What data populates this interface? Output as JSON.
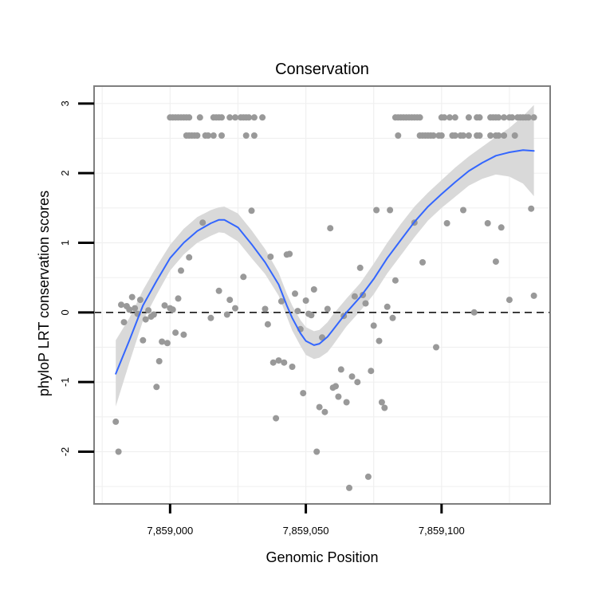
{
  "chart_data": {
    "type": "scatter",
    "title": "Conservation",
    "xlabel": "Genomic Position",
    "ylabel": "phyloP LRT conservation scores",
    "xlim": [
      7858972,
      7859140
    ],
    "ylim": [
      -2.75,
      3.25
    ],
    "x_ticks": [
      7859000,
      7859050,
      7859100
    ],
    "x_tick_labels": [
      "7,859,000",
      "7,859,050",
      "7,859,100"
    ],
    "y_ticks": [
      -2,
      -1,
      0,
      1,
      2,
      3
    ],
    "y_tick_labels": [
      "-2",
      "-1",
      "0",
      "1",
      "2",
      "3"
    ],
    "hline": {
      "y": 0,
      "style": "dashed",
      "color": "#000000"
    },
    "grid": true,
    "colors": {
      "points": "#999999",
      "smooth_line": "#3366ff",
      "confidence_band": "#d9d9d9",
      "panel_border": "#7f7f7f",
      "grid": "#f0f0f0"
    },
    "series": [
      {
        "name": "scores",
        "kind": "points",
        "points": [
          [
            7858980,
            -1.57
          ],
          [
            7858981,
            -2.0
          ],
          [
            7858982,
            0.11
          ],
          [
            7858983,
            -0.14
          ],
          [
            7858984,
            0.09
          ],
          [
            7858985,
            0.04
          ],
          [
            7858986,
            0.22
          ],
          [
            7858987,
            0.06
          ],
          [
            7858988,
            -0.02
          ],
          [
            7858989,
            0.18
          ],
          [
            7858990,
            -0.4
          ],
          [
            7858991,
            -0.1
          ],
          [
            7858992,
            0.03
          ],
          [
            7858993,
            -0.06
          ],
          [
            7858994,
            -0.03
          ],
          [
            7858995,
            -1.07
          ],
          [
            7858996,
            -0.7
          ],
          [
            7858997,
            -0.42
          ],
          [
            7858998,
            0.1
          ],
          [
            7858999,
            -0.44
          ],
          [
            7859000,
            0.06
          ],
          [
            7859001,
            0.04
          ],
          [
            7859002,
            -0.29
          ],
          [
            7859003,
            0.2
          ],
          [
            7859004,
            0.6
          ],
          [
            7859005,
            -0.32
          ],
          [
            7859007,
            0.79
          ],
          [
            7859012,
            1.29
          ],
          [
            7859015,
            -0.08
          ],
          [
            7859018,
            0.31
          ],
          [
            7859021,
            -0.03
          ],
          [
            7859022,
            0.18
          ],
          [
            7859024,
            0.06
          ],
          [
            7859027,
            0.51
          ],
          [
            7859030,
            1.46
          ],
          [
            7859035,
            0.05
          ],
          [
            7859036,
            -0.17
          ],
          [
            7859037,
            0.8
          ],
          [
            7859038,
            -0.72
          ],
          [
            7859039,
            -1.52
          ],
          [
            7859040,
            -0.69
          ],
          [
            7859041,
            0.16
          ],
          [
            7859042,
            -0.72
          ],
          [
            7859043,
            0.83
          ],
          [
            7859044,
            0.84
          ],
          [
            7859045,
            -0.78
          ],
          [
            7859046,
            0.27
          ],
          [
            7859047,
            0.02
          ],
          [
            7859048,
            -0.24
          ],
          [
            7859049,
            -1.16
          ],
          [
            7859050,
            0.17
          ],
          [
            7859051,
            -0.02
          ],
          [
            7859052,
            -0.04
          ],
          [
            7859053,
            0.33
          ],
          [
            7859054,
            -2.0
          ],
          [
            7859055,
            -1.36
          ],
          [
            7859056,
            -0.36
          ],
          [
            7859057,
            -1.43
          ],
          [
            7859058,
            0.05
          ],
          [
            7859059,
            1.21
          ],
          [
            7859060,
            -1.08
          ],
          [
            7859061,
            -1.06
          ],
          [
            7859062,
            -1.21
          ],
          [
            7859063,
            -0.82
          ],
          [
            7859064,
            -0.05
          ],
          [
            7859065,
            -1.29
          ],
          [
            7859066,
            -2.52
          ],
          [
            7859067,
            -0.92
          ],
          [
            7859068,
            0.23
          ],
          [
            7859069,
            -1.0
          ],
          [
            7859070,
            0.64
          ],
          [
            7859071,
            0.25
          ],
          [
            7859072,
            0.13
          ],
          [
            7859073,
            -2.36
          ],
          [
            7859074,
            -0.84
          ],
          [
            7859075,
            -0.19
          ],
          [
            7859076,
            1.47
          ],
          [
            7859077,
            -0.41
          ],
          [
            7859078,
            -1.29
          ],
          [
            7859079,
            -1.37
          ],
          [
            7859080,
            0.08
          ],
          [
            7859081,
            1.47
          ],
          [
            7859082,
            -0.08
          ],
          [
            7859083,
            0.46
          ],
          [
            7859090,
            1.29
          ],
          [
            7859093,
            0.72
          ],
          [
            7859098,
            -0.5
          ],
          [
            7859102,
            1.28
          ],
          [
            7859108,
            1.47
          ],
          [
            7859112,
            0.0
          ],
          [
            7859117,
            1.28
          ],
          [
            7859120,
            0.73
          ],
          [
            7859122,
            1.22
          ],
          [
            7859125,
            0.18
          ],
          [
            7859133,
            1.49
          ],
          [
            7859134,
            0.24
          ]
        ]
      },
      {
        "name": "top_band_a",
        "kind": "points",
        "y": 2.8,
        "x": [
          7859000,
          7859001,
          7859002,
          7859003,
          7859004,
          7859005,
          7859006,
          7859007,
          7859011,
          7859016,
          7859017,
          7859018,
          7859019,
          7859022,
          7859024,
          7859026,
          7859027,
          7859028,
          7859029,
          7859031,
          7859034,
          7859083,
          7859084,
          7859085,
          7859086,
          7859087,
          7859088,
          7859089,
          7859090,
          7859091,
          7859092,
          7859100,
          7859101,
          7859103,
          7859105,
          7859110,
          7859113,
          7859114,
          7859118,
          7859119,
          7859120,
          7859121,
          7859123,
          7859125,
          7859126,
          7859128,
          7859129,
          7859130,
          7859131,
          7859132,
          7859134
        ]
      },
      {
        "name": "top_band_b",
        "kind": "points",
        "y": 2.54,
        "x": [
          7859006,
          7859007,
          7859008,
          7859009,
          7859010,
          7859013,
          7859014,
          7859016,
          7859019,
          7859028,
          7859031,
          7859084,
          7859092,
          7859093,
          7859094,
          7859095,
          7859096,
          7859097,
          7859099,
          7859100,
          7859104,
          7859105,
          7859107,
          7859108,
          7859110,
          7859113,
          7859114,
          7859118,
          7859120,
          7859121,
          7859123,
          7859127
        ]
      },
      {
        "name": "loess",
        "kind": "line",
        "x": [
          7858980,
          7858985,
          7858990,
          7858995,
          7859000,
          7859005,
          7859010,
          7859015,
          7859018,
          7859020,
          7859025,
          7859030,
          7859035,
          7859040,
          7859043,
          7859045,
          7859048,
          7859050,
          7859053,
          7859055,
          7859058,
          7859060,
          7859065,
          7859070,
          7859075,
          7859080,
          7859085,
          7859090,
          7859095,
          7859100,
          7859105,
          7859110,
          7859115,
          7859120,
          7859125,
          7859130,
          7859134
        ],
        "y": [
          -0.88,
          -0.4,
          0.1,
          0.45,
          0.78,
          1.0,
          1.17,
          1.28,
          1.33,
          1.33,
          1.22,
          0.98,
          0.72,
          0.4,
          0.1,
          -0.08,
          -0.3,
          -0.41,
          -0.47,
          -0.45,
          -0.35,
          -0.25,
          0.0,
          0.22,
          0.48,
          0.78,
          1.04,
          1.3,
          1.52,
          1.7,
          1.87,
          2.03,
          2.15,
          2.25,
          2.3,
          2.33,
          2.32
        ]
      },
      {
        "name": "confidence_band",
        "kind": "band",
        "x": [
          7858980,
          7858985,
          7858990,
          7858995,
          7859000,
          7859005,
          7859010,
          7859015,
          7859018,
          7859020,
          7859025,
          7859030,
          7859035,
          7859040,
          7859043,
          7859045,
          7859048,
          7859050,
          7859053,
          7859055,
          7859058,
          7859060,
          7859065,
          7859070,
          7859075,
          7859080,
          7859085,
          7859090,
          7859095,
          7859100,
          7859105,
          7859110,
          7859115,
          7859120,
          7859125,
          7859130,
          7859134
        ],
        "lower": [
          -1.35,
          -0.72,
          -0.12,
          0.25,
          0.6,
          0.83,
          1.0,
          1.1,
          1.15,
          1.14,
          1.02,
          0.78,
          0.55,
          0.24,
          -0.06,
          -0.26,
          -0.48,
          -0.61,
          -0.67,
          -0.65,
          -0.57,
          -0.47,
          -0.2,
          0.02,
          0.26,
          0.56,
          0.82,
          1.08,
          1.32,
          1.5,
          1.66,
          1.82,
          1.92,
          1.98,
          1.95,
          1.85,
          1.67
        ],
        "upper": [
          -0.4,
          -0.08,
          0.32,
          0.66,
          0.97,
          1.2,
          1.37,
          1.47,
          1.51,
          1.52,
          1.42,
          1.18,
          0.91,
          0.57,
          0.27,
          0.1,
          -0.11,
          -0.21,
          -0.27,
          -0.25,
          -0.14,
          -0.03,
          0.2,
          0.42,
          0.7,
          1.0,
          1.27,
          1.52,
          1.72,
          1.9,
          2.08,
          2.24,
          2.38,
          2.52,
          2.65,
          2.82,
          2.98
        ]
      }
    ]
  }
}
